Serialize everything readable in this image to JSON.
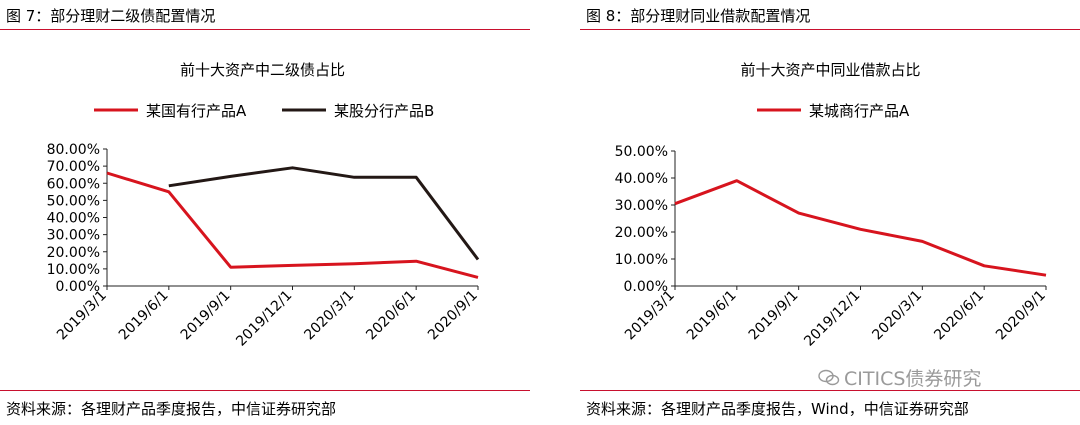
{
  "left": {
    "fig_title": "图 7：部分理财二级债配置情况",
    "source": "资料来源：各理财产品季度报告，中信证券研究部"
  },
  "right": {
    "fig_title": "图 8：部分理财同业借款配置情况",
    "source": "资料来源：各理财产品季度报告，Wind，中信证券研究部"
  },
  "watermark": {
    "text": "CITICS债券研究",
    "icon": "wechat-icon"
  },
  "colors": {
    "red": "#d7141e",
    "dark": "#231815",
    "rule": "#c8102e"
  },
  "chart_data": [
    {
      "type": "line",
      "title": "前十大资产中二级债占比",
      "categories": [
        "2019/3/1",
        "2019/6/1",
        "2019/9/1",
        "2019/12/1",
        "2020/3/1",
        "2020/6/1",
        "2020/9/1"
      ],
      "ylim": [
        0,
        80
      ],
      "yticks": [
        "0.00%",
        "10.00%",
        "20.00%",
        "30.00%",
        "40.00%",
        "50.00%",
        "60.00%",
        "70.00%",
        "80.00%"
      ],
      "legend_position": "top",
      "grid": false,
      "series": [
        {
          "name": "某国有行产品A",
          "color": "#d7141e",
          "values": [
            66,
            55,
            11,
            12,
            13,
            14.5,
            5
          ]
        },
        {
          "name": "某股分行产品B",
          "color": "#231815",
          "values": [
            null,
            58.5,
            64,
            69,
            63.5,
            63.5,
            15.5
          ]
        }
      ]
    },
    {
      "type": "line",
      "title": "前十大资产中同业借款占比",
      "categories": [
        "2019/3/1",
        "2019/6/1",
        "2019/9/1",
        "2019/12/1",
        "2020/3/1",
        "2020/6/1",
        "2020/9/1"
      ],
      "ylim": [
        0,
        50
      ],
      "yticks": [
        "0.00%",
        "10.00%",
        "20.00%",
        "30.00%",
        "40.00%",
        "50.00%"
      ],
      "legend_position": "top",
      "grid": false,
      "series": [
        {
          "name": "某城商行产品A",
          "color": "#d7141e",
          "values": [
            30.5,
            39,
            27,
            21,
            16.5,
            7.5,
            4
          ]
        }
      ]
    }
  ]
}
